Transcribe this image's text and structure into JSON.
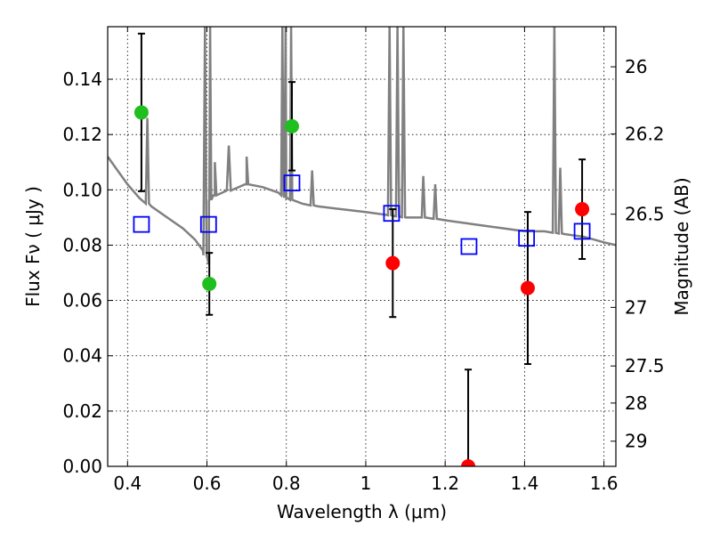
{
  "chart_data": {
    "type": "scatter",
    "xlabel": "Wavelength  λ (μm)",
    "ylabel": "Flux  Fν  ( μJy )",
    "ylabel_right": "Magnitude (AB)",
    "xlim": [
      0.35,
      1.63
    ],
    "ylim": [
      0.0,
      0.159
    ],
    "grid": true,
    "x_ticks": [
      0.4,
      0.6,
      0.8,
      1.0,
      1.2,
      1.4,
      1.6
    ],
    "x_tick_labels": [
      "0.4",
      "0.6",
      "0.8",
      "1",
      "1.2",
      "1.4",
      "1.6"
    ],
    "y_ticks": [
      0.0,
      0.02,
      0.04,
      0.06,
      0.08,
      0.1,
      0.12,
      0.14
    ],
    "y_tick_labels": [
      "0.00",
      "0.02",
      "0.04",
      "0.06",
      "0.08",
      "0.10",
      "0.12",
      "0.14"
    ],
    "right_ticks": [
      {
        "label": "26",
        "flux": 0.1445
      },
      {
        "label": "26.2",
        "flux": 0.1202
      },
      {
        "label": "26.5",
        "flux": 0.0912
      },
      {
        "label": "27",
        "flux": 0.0575
      },
      {
        "label": "27.5",
        "flux": 0.0363
      },
      {
        "label": "28",
        "flux": 0.0229
      },
      {
        "label": "29",
        "flux": 0.0091
      }
    ],
    "observed_detections": {
      "color": "#1fbf1f",
      "points": [
        {
          "x": 0.435,
          "y": 0.128,
          "err": 0.0285
        },
        {
          "x": 0.606,
          "y": 0.066,
          "err": 0.0112
        },
        {
          "x": 0.814,
          "y": 0.123,
          "err": 0.016
        }
      ]
    },
    "observed_low_significance": {
      "color": "#ff0000",
      "points": [
        {
          "x": 1.068,
          "y": 0.0735,
          "err": 0.0195
        },
        {
          "x": 1.258,
          "y": 0.0,
          "err": 0.035
        },
        {
          "x": 1.408,
          "y": 0.0645,
          "err": 0.0275
        },
        {
          "x": 1.545,
          "y": 0.093,
          "err": 0.018
        }
      ]
    },
    "model_photometry": {
      "color": "#0000ff",
      "points": [
        {
          "x": 0.435,
          "y": 0.0875
        },
        {
          "x": 0.604,
          "y": 0.0875
        },
        {
          "x": 0.814,
          "y": 0.1025
        },
        {
          "x": 1.065,
          "y": 0.0915
        },
        {
          "x": 1.26,
          "y": 0.0795
        },
        {
          "x": 1.405,
          "y": 0.0825
        },
        {
          "x": 1.545,
          "y": 0.085
        }
      ]
    },
    "model_spectrum": {
      "color": "#808080",
      "continuum": [
        [
          0.35,
          0.112
        ],
        [
          0.37,
          0.108
        ],
        [
          0.4,
          0.102
        ],
        [
          0.43,
          0.097
        ],
        [
          0.46,
          0.094
        ],
        [
          0.5,
          0.09
        ],
        [
          0.54,
          0.086
        ],
        [
          0.57,
          0.082
        ],
        [
          0.59,
          0.078
        ],
        [
          0.605,
          0.073
        ],
        [
          0.606,
          0.096
        ],
        [
          0.62,
          0.098
        ],
        [
          0.66,
          0.1
        ],
        [
          0.7,
          0.102
        ],
        [
          0.74,
          0.101
        ],
        [
          0.78,
          0.099
        ],
        [
          0.8,
          0.097
        ],
        [
          0.84,
          0.095
        ],
        [
          0.88,
          0.094
        ],
        [
          0.94,
          0.093
        ],
        [
          1.0,
          0.092
        ],
        [
          1.05,
          0.091
        ],
        [
          1.1,
          0.09
        ],
        [
          1.15,
          0.09
        ],
        [
          1.2,
          0.089
        ],
        [
          1.25,
          0.088
        ],
        [
          1.3,
          0.087
        ],
        [
          1.35,
          0.086
        ],
        [
          1.4,
          0.085
        ],
        [
          1.45,
          0.085
        ],
        [
          1.5,
          0.084
        ],
        [
          1.55,
          0.083
        ],
        [
          1.6,
          0.081
        ],
        [
          1.63,
          0.08
        ]
      ],
      "emission_lines": [
        {
          "x": 0.45,
          "peak": 0.126,
          "w": 0.004
        },
        {
          "x": 0.595,
          "peak": 0.159,
          "w": 0.004
        },
        {
          "x": 0.608,
          "peak": 0.159,
          "w": 0.003
        },
        {
          "x": 0.62,
          "peak": 0.11,
          "w": 0.004
        },
        {
          "x": 0.655,
          "peak": 0.116,
          "w": 0.005
        },
        {
          "x": 0.7,
          "peak": 0.112,
          "w": 0.004
        },
        {
          "x": 0.79,
          "peak": 0.159,
          "w": 0.003
        },
        {
          "x": 0.798,
          "peak": 0.159,
          "w": 0.003
        },
        {
          "x": 0.812,
          "peak": 0.159,
          "w": 0.003
        },
        {
          "x": 0.865,
          "peak": 0.107,
          "w": 0.004
        },
        {
          "x": 1.06,
          "peak": 0.159,
          "w": 0.004
        },
        {
          "x": 1.08,
          "peak": 0.159,
          "w": 0.004
        },
        {
          "x": 1.095,
          "peak": 0.159,
          "w": 0.004
        },
        {
          "x": 1.145,
          "peak": 0.105,
          "w": 0.004
        },
        {
          "x": 1.175,
          "peak": 0.102,
          "w": 0.004
        },
        {
          "x": 1.475,
          "peak": 0.159,
          "w": 0.004
        },
        {
          "x": 1.49,
          "peak": 0.108,
          "w": 0.004
        }
      ]
    }
  }
}
